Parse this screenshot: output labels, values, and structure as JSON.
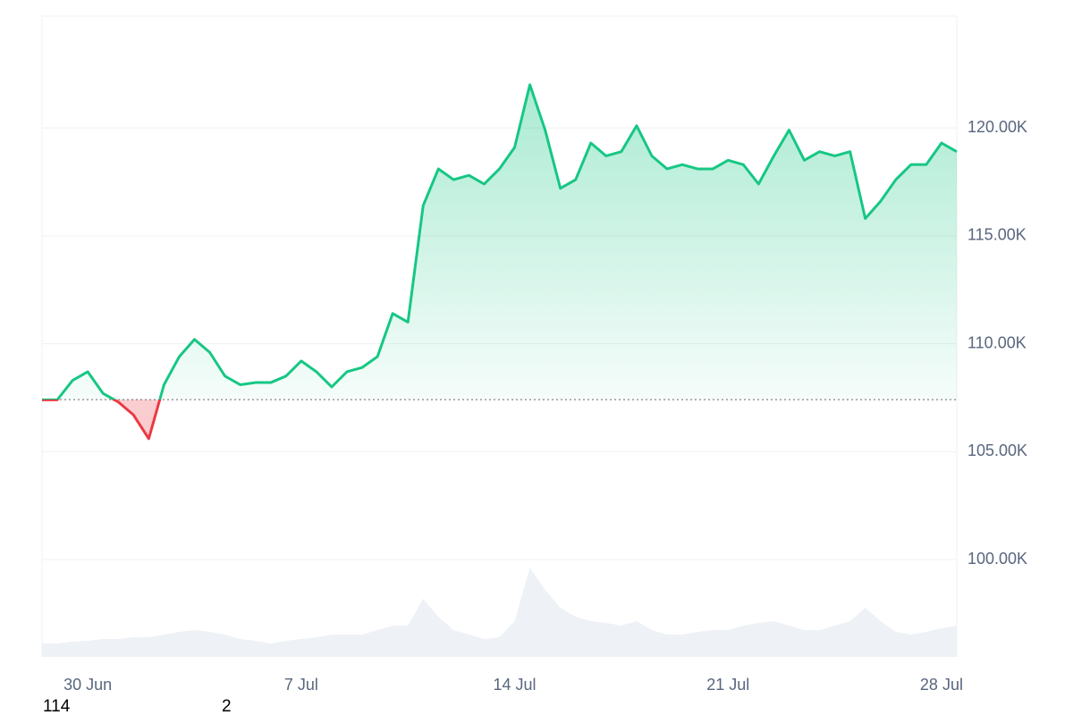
{
  "chart_data": {
    "type": "line",
    "categories": [
      null,
      null,
      null,
      "30 Jun",
      null,
      null,
      null,
      null,
      null,
      null,
      null,
      null,
      null,
      null,
      null,
      null,
      null,
      "7 Jul",
      null,
      null,
      null,
      null,
      null,
      null,
      null,
      null,
      null,
      null,
      null,
      null,
      null,
      "14 Jul",
      null,
      null,
      null,
      null,
      null,
      null,
      null,
      null,
      null,
      null,
      null,
      null,
      null,
      "21 Jul",
      null,
      null,
      null,
      null,
      null,
      null,
      null,
      null,
      null,
      null,
      null,
      null,
      null,
      "28 Jul",
      null
    ],
    "values": [
      107400,
      107400,
      108300,
      108700,
      107700,
      107300,
      106700,
      105600,
      108100,
      109400,
      110200,
      109600,
      108500,
      108100,
      108200,
      108200,
      108500,
      109200,
      108700,
      108000,
      108700,
      108900,
      109400,
      111400,
      111000,
      116400,
      118100,
      117600,
      117800,
      117400,
      118100,
      119100,
      122000,
      119900,
      117200,
      117600,
      119300,
      118700,
      118900,
      120100,
      118700,
      118100,
      118300,
      118100,
      118100,
      118500,
      118300,
      117400,
      118700,
      119900,
      118500,
      118900,
      118700,
      118900,
      115800,
      116600,
      117600,
      118300,
      118300,
      119300,
      118900
    ],
    "color": "#16c784",
    "negative_color": "#ea3943",
    "baseline": 107410,
    "volume_values": [
      15,
      15,
      17,
      18,
      20,
      20,
      22,
      22,
      25,
      28,
      30,
      28,
      25,
      20,
      18,
      15,
      18,
      20,
      22,
      25,
      25,
      25,
      30,
      35,
      35,
      65,
      45,
      30,
      25,
      20,
      22,
      40,
      100,
      75,
      55,
      45,
      40,
      38,
      35,
      40,
      30,
      25,
      25,
      28,
      30,
      30,
      35,
      38,
      40,
      35,
      30,
      30,
      35,
      40,
      55,
      40,
      28,
      25,
      28,
      32,
      35
    ],
    "volume_color": "#eef1f5",
    "ylim": [
      95490,
      125180
    ],
    "yticks": [
      {
        "value": 100000,
        "label": "100.00K"
      },
      {
        "value": 105000,
        "label": "105.00K"
      },
      {
        "value": 110000,
        "label": "110.00K"
      },
      {
        "value": 115000,
        "label": "115.00K"
      },
      {
        "value": 120000,
        "label": "120.00K"
      }
    ],
    "grid": true
  },
  "footer": [
    "114",
    "2"
  ]
}
